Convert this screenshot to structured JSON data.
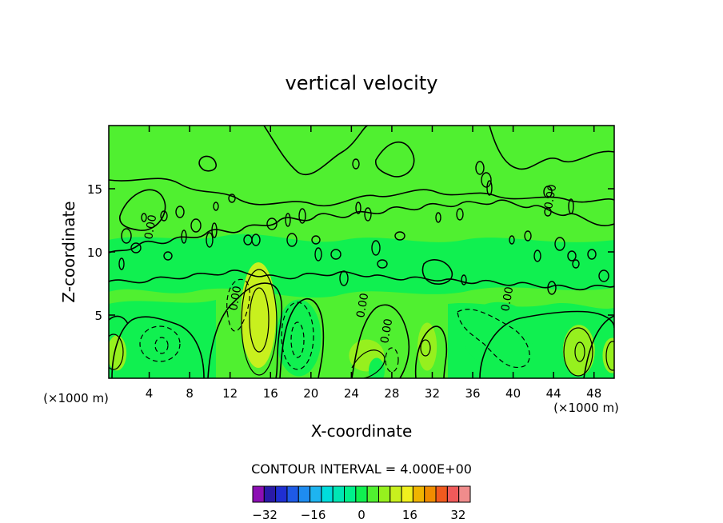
{
  "chart_data": {
    "type": "heatmap",
    "title": "vertical velocity",
    "xlabel": "X-coordinate",
    "ylabel": "Z-coordinate",
    "x_unit_label_left": "(×1000 m)",
    "x_unit_label_right": "(×1000 m)",
    "xlim": [
      0,
      50
    ],
    "ylim": [
      0,
      20
    ],
    "x_ticks": [
      4,
      8,
      12,
      16,
      20,
      24,
      28,
      32,
      36,
      40,
      44,
      48
    ],
    "y_ticks": [
      5,
      10,
      15
    ],
    "contour_interval_text": "CONTOUR INTERVAL = 4.000E+00",
    "contour_zero_label": "0.00",
    "colorbar": {
      "levels": [
        -36,
        -32,
        -28,
        -24,
        -20,
        -16,
        -12,
        -8,
        -4,
        0,
        4,
        8,
        12,
        16,
        20,
        24,
        28,
        32,
        36
      ],
      "colors": [
        "#8c0fb4",
        "#2a1aa8",
        "#1f2fd2",
        "#1e5ae6",
        "#1e8cf0",
        "#1eb4f0",
        "#00dcdc",
        "#00e6b4",
        "#00f08c",
        "#10f050",
        "#50f030",
        "#96f01e",
        "#c8f01e",
        "#f0f01e",
        "#f0b400",
        "#f08c00",
        "#f05a1e",
        "#f05a5a",
        "#f08c8c"
      ],
      "tick_labels": [
        "−32",
        "−16",
        "0",
        "16",
        "32"
      ],
      "tick_values": [
        -32,
        -16,
        0,
        16,
        32
      ]
    },
    "features": [
      {
        "x": 14.8,
        "z": 5.0,
        "value": 16
      },
      {
        "x": 14.8,
        "z": 5.0,
        "value": 8
      },
      {
        "x": 18.8,
        "z": 3.2,
        "value": -8
      },
      {
        "x": 18.8,
        "z": 3.2,
        "value": -4
      },
      {
        "x": 5.2,
        "z": 2.8,
        "value": -8
      },
      {
        "x": 5.2,
        "z": 2.8,
        "value": -4
      },
      {
        "x": 46.5,
        "z": 2.2,
        "value": 8
      },
      {
        "x": 46.5,
        "z": 2.2,
        "value": 4
      },
      {
        "x": 0.8,
        "z": 2.0,
        "value": 4
      },
      {
        "x": 49.8,
        "z": 1.8,
        "value": 4
      },
      {
        "x": 25.5,
        "z": 1.8,
        "value": 4
      },
      {
        "x": 31.5,
        "z": 2.5,
        "value": 4
      },
      {
        "x": 38.5,
        "z": 3.5,
        "value": -4
      },
      {
        "x": 26.5,
        "z": 0.6,
        "value": -4
      }
    ]
  }
}
